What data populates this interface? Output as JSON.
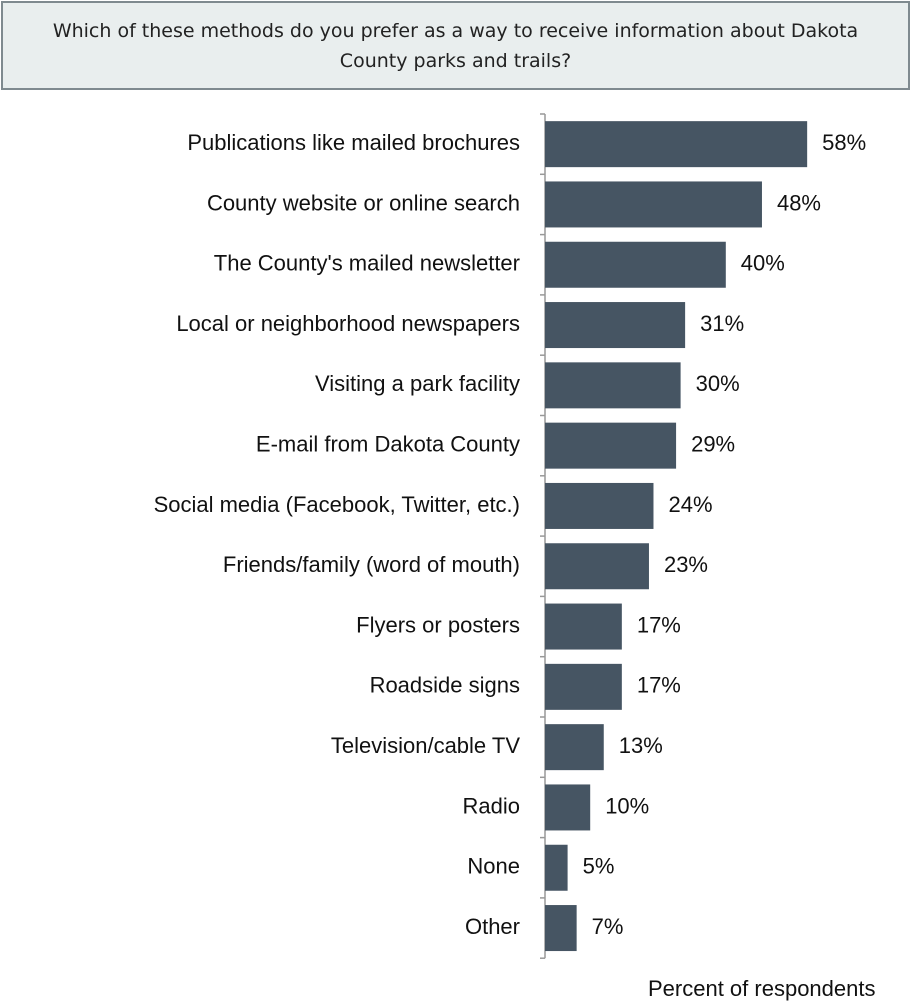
{
  "chart_data": {
    "type": "hbar",
    "title": "Which of these methods do you prefer as a way to receive information about Dakota County parks and trails?",
    "x_label": "Percent of respondents",
    "categories": [
      "Publications like mailed brochures",
      "County website or online search",
      "The County's mailed newsletter",
      "Local or neighborhood newspapers",
      "Visiting a park facility",
      "E-mail from Dakota County",
      "Social media (Facebook, Twitter, etc.)",
      "Friends/family (word of mouth)",
      "Flyers or posters",
      "Roadside signs",
      "Television/cable TV",
      "Radio",
      "None",
      "Other"
    ],
    "values": [
      58,
      48,
      40,
      31,
      30,
      29,
      24,
      23,
      17,
      17,
      13,
      10,
      5,
      7
    ],
    "value_labels": [
      "58%",
      "48%",
      "40%",
      "31%",
      "30%",
      "29%",
      "24%",
      "23%",
      "17%",
      "17%",
      "13%",
      "10%",
      "5%",
      "7%"
    ],
    "color": "#465563"
  }
}
